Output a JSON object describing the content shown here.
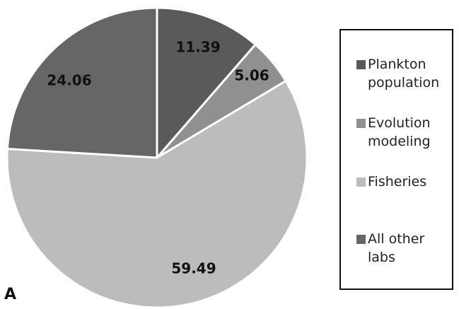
{
  "chart_data": {
    "type": "pie",
    "panel_label": "A",
    "slices": [
      {
        "label": "Plankton population",
        "value": 11.39,
        "value_label": "11.39",
        "color": "#5a5a5a"
      },
      {
        "label": "Evolution modeling",
        "value": 5.06,
        "value_label": "5.06",
        "color": "#909090"
      },
      {
        "label": "Fisheries",
        "value": 59.49,
        "value_label": "59.49",
        "color": "#bcbcbc"
      },
      {
        "label": "All other labs",
        "value": 24.06,
        "value_label": "24.06",
        "color": "#666666"
      }
    ],
    "legend": [
      {
        "text": "Plankton\npopulation",
        "color": "#5a5a5a"
      },
      {
        "text": "Evolution\nmodeling",
        "color": "#909090"
      },
      {
        "text": "Fisheries",
        "color": "#bcbcbc"
      },
      {
        "text": "All other\nlabs",
        "color": "#666666"
      }
    ],
    "legend_position": "right",
    "start_angle": "12 o'clock",
    "direction": "clockwise"
  }
}
